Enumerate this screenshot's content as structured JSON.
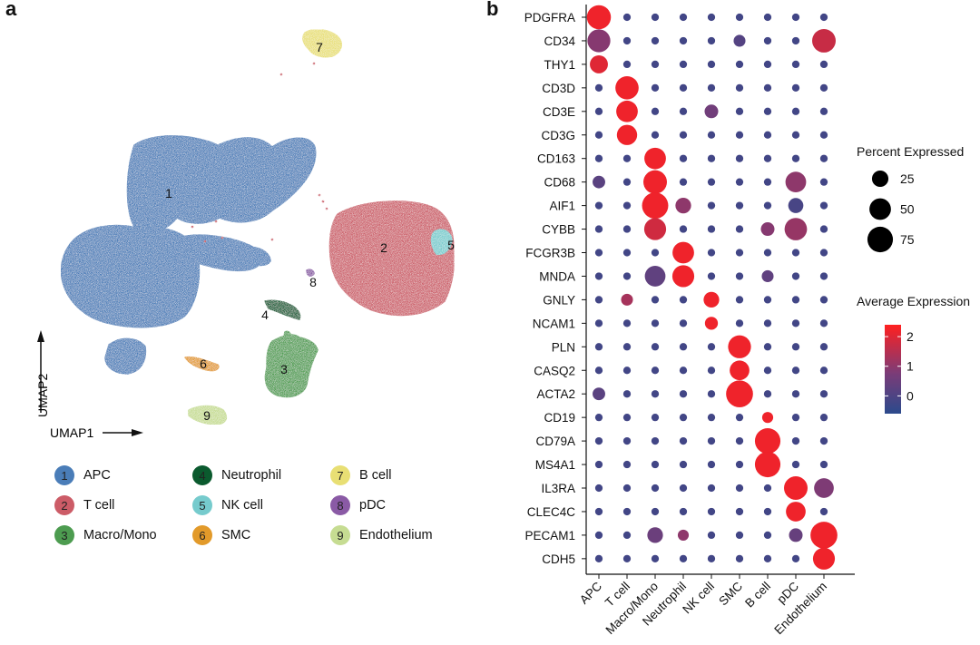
{
  "panels": {
    "a": "a",
    "b": "b"
  },
  "umap": {
    "x_label": "UMAP1",
    "y_label": "UMAP2",
    "clusters": [
      {
        "id": "1",
        "name": "APC",
        "color": "#4a7db8"
      },
      {
        "id": "2",
        "name": "T cell",
        "color": "#cc5c67"
      },
      {
        "id": "3",
        "name": "Macro/Mono",
        "color": "#4d9c50"
      },
      {
        "id": "4",
        "name": "Neutrophil",
        "color": "#0b5a2e"
      },
      {
        "id": "5",
        "name": "NK cell",
        "color": "#76cbcd"
      },
      {
        "id": "6",
        "name": "SMC",
        "color": "#e29a2a"
      },
      {
        "id": "7",
        "name": "B cell",
        "color": "#e8df74"
      },
      {
        "id": "8",
        "name": "pDC",
        "color": "#8a5aa5"
      },
      {
        "id": "9",
        "name": "Endothelium",
        "color": "#c6dc92"
      }
    ]
  },
  "chart_data": {
    "type": "dotplot",
    "genes": [
      "PDGFRA",
      "CD34",
      "THY1",
      "CD3D",
      "CD3E",
      "CD3G",
      "CD163",
      "CD68",
      "AIF1",
      "CYBB",
      "FCGR3B",
      "MNDA",
      "GNLY",
      "NCAM1",
      "PLN",
      "CASQ2",
      "ACTA2",
      "CD19",
      "CD79A",
      "MS4A1",
      "IL3RA",
      "CLEC4C",
      "PECAM1",
      "CDH5"
    ],
    "cell_types": [
      "APC",
      "T cell",
      "Macro/Mono",
      "Neutrophil",
      "NK cell",
      "SMC",
      "B cell",
      "pDC",
      "Endothelium"
    ],
    "points": [
      {
        "gene": "PDGFRA",
        "cell": "APC",
        "pct": 65,
        "avg": 2.2
      },
      {
        "gene": "CD34",
        "cell": "APC",
        "pct": 58,
        "avg": 0.9
      },
      {
        "gene": "CD34",
        "cell": "Endothelium",
        "pct": 62,
        "avg": 1.7
      },
      {
        "gene": "THY1",
        "cell": "APC",
        "pct": 32,
        "avg": 2.0
      },
      {
        "gene": "CD3D",
        "cell": "T cell",
        "pct": 60,
        "avg": 2.2
      },
      {
        "gene": "CD3E",
        "cell": "T cell",
        "pct": 50,
        "avg": 2.2
      },
      {
        "gene": "CD3G",
        "cell": "T cell",
        "pct": 43,
        "avg": 2.2
      },
      {
        "gene": "CD163",
        "cell": "Macro/Mono",
        "pct": 50,
        "avg": 2.2
      },
      {
        "gene": "CD68",
        "cell": "Macro/Mono",
        "pct": 62,
        "avg": 2.2
      },
      {
        "gene": "AIF1",
        "cell": "Macro/Mono",
        "pct": 80,
        "avg": 2.2
      },
      {
        "gene": "CYBB",
        "cell": "Macro/Mono",
        "pct": 52,
        "avg": 1.8
      },
      {
        "gene": "FCGR3B",
        "cell": "Neutrophil",
        "pct": 50,
        "avg": 2.2
      },
      {
        "gene": "MNDA",
        "cell": "Neutrophil",
        "pct": 52,
        "avg": 2.2
      },
      {
        "gene": "MNDA",
        "cell": "Macro/Mono",
        "pct": 45,
        "avg": 0.3
      },
      {
        "gene": "GNLY",
        "cell": "NK cell",
        "pct": 22,
        "avg": 2.2
      },
      {
        "gene": "NCAM1",
        "cell": "NK cell",
        "pct": 13,
        "avg": 2.2
      },
      {
        "gene": "PLN",
        "cell": "SMC",
        "pct": 58,
        "avg": 2.2
      },
      {
        "gene": "CASQ2",
        "cell": "SMC",
        "pct": 40,
        "avg": 2.2
      },
      {
        "gene": "ACTA2",
        "cell": "SMC",
        "pct": 85,
        "avg": 2.2
      },
      {
        "gene": "CD19",
        "cell": "B cell",
        "pct": 8,
        "avg": 2.2
      },
      {
        "gene": "CD79A",
        "cell": "B cell",
        "pct": 75,
        "avg": 2.2
      },
      {
        "gene": "MS4A1",
        "cell": "B cell",
        "pct": 75,
        "avg": 2.2
      },
      {
        "gene": "IL3RA",
        "cell": "pDC",
        "pct": 62,
        "avg": 2.2
      },
      {
        "gene": "IL3RA",
        "cell": "Endothelium",
        "pct": 40,
        "avg": 0.8
      },
      {
        "gene": "CLEC4C",
        "cell": "pDC",
        "pct": 40,
        "avg": 2.2
      },
      {
        "gene": "PECAM1",
        "cell": "Endothelium",
        "pct": 85,
        "avg": 2.2
      },
      {
        "gene": "CDH5",
        "cell": "Endothelium",
        "pct": 52,
        "avg": 2.2
      },
      {
        "gene": "CD68",
        "cell": "pDC",
        "pct": 45,
        "avg": 1.0
      },
      {
        "gene": "CYBB",
        "cell": "pDC",
        "pct": 55,
        "avg": 1.1
      },
      {
        "gene": "AIF1",
        "cell": "pDC",
        "pct": 20,
        "avg": -0.1
      },
      {
        "gene": "AIF1",
        "cell": "Neutrophil",
        "pct": 22,
        "avg": 1.0
      },
      {
        "gene": "CD34",
        "cell": "SMC",
        "pct": 10,
        "avg": 0.1
      },
      {
        "gene": "CD3E",
        "cell": "NK cell",
        "pct": 15,
        "avg": 0.6
      },
      {
        "gene": "GNLY",
        "cell": "T cell",
        "pct": 10,
        "avg": 1.3
      },
      {
        "gene": "ACTA2",
        "cell": "APC",
        "pct": 12,
        "avg": 0.2
      },
      {
        "gene": "CD68",
        "cell": "APC",
        "pct": 12,
        "avg": 0.2
      },
      {
        "gene": "MNDA",
        "cell": "B cell",
        "pct": 10,
        "avg": 0.3
      },
      {
        "gene": "CYBB",
        "cell": "B cell",
        "pct": 15,
        "avg": 0.9
      },
      {
        "gene": "PECAM1",
        "cell": "Macro/Mono",
        "pct": 22,
        "avg": 0.5
      },
      {
        "gene": "PECAM1",
        "cell": "pDC",
        "pct": 15,
        "avg": 0.4
      },
      {
        "gene": "PECAM1",
        "cell": "Neutrophil",
        "pct": 8,
        "avg": 1.0
      }
    ],
    "size_legend": {
      "title": "Percent Expressed",
      "values": [
        25,
        50,
        75
      ]
    },
    "color_legend": {
      "title": "Average Expression",
      "ticks": [
        2,
        1,
        0
      ],
      "range": [
        -0.6,
        2.4
      ],
      "low_color": "#2b4a8c",
      "mid_color": "#a13c6a",
      "high_color": "#ff2020"
    }
  }
}
